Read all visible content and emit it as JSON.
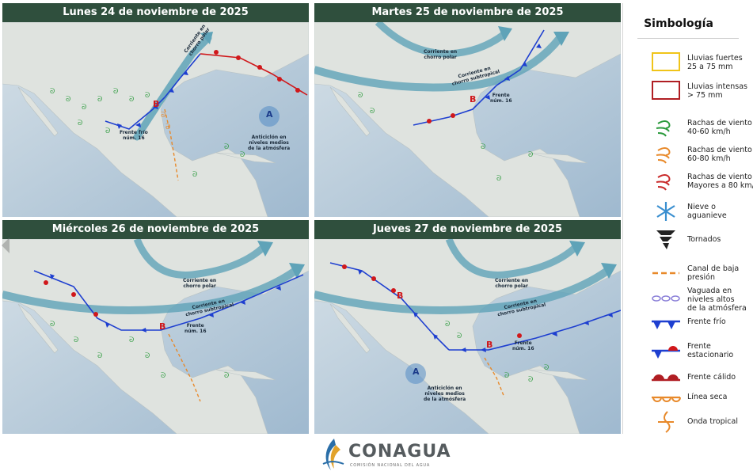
{
  "panels": [
    {
      "title": "Lunes 24 de noviembre de 2025",
      "labels": {
        "frente": "Frente frío\nnúm. 16",
        "antic": "Anticiclón en\nniveles medios\nde la atmósfera",
        "polar": "Corriente en\nchorro polar",
        "b": "B",
        "a": "A"
      }
    },
    {
      "title": "Martes 25 de noviembre de 2025",
      "labels": {
        "polar": "Corriente en\nchorro polar",
        "sub": "Corriente en\nchorro subtropical",
        "frente": "Frente\nnúm. 16",
        "b": "B"
      }
    },
    {
      "title": "Miércoles 26 de noviembre de 2025",
      "labels": {
        "polar": "Corriente en\nchorro polar",
        "sub": "Corriente en\nchorro subtropical",
        "frente": "Frente\nnúm. 16",
        "b": "B"
      }
    },
    {
      "title": "Jueves 27 de noviembre de 2025",
      "labels": {
        "polar": "Corriente en\nchorro polar",
        "sub": "Corriente en\nchorro subtropical",
        "frente": "Frente\nnúm. 16",
        "antic": "Anticiclón en\nniveles medios\nde la atmósfera",
        "b1": "B",
        "b2": "B",
        "a": "A"
      }
    }
  ],
  "legend": {
    "title": "Simbología",
    "items": [
      {
        "icon": "yellow-rectangle-icon",
        "label": "Lluvias fuertes\n25 a 75 mm"
      },
      {
        "icon": "red-rectangle-icon",
        "label": "Lluvias intensas\n> 75 mm"
      },
      {
        "icon": "green-wind-gust-icon",
        "label": "Rachas de viento\n40-60 km/h"
      },
      {
        "icon": "orange-wind-gust-icon",
        "label": "Rachas de viento\n60-80 km/h"
      },
      {
        "icon": "red-wind-gust-icon",
        "label": "Rachas de viento\nMayores a 80 km/h"
      },
      {
        "icon": "snowflake-icon",
        "label": "Nieve o\naguanieve"
      },
      {
        "icon": "tornado-icon",
        "label": "Tornados"
      },
      {
        "icon": "dashed-orange-line-icon",
        "label": "Canal de baja\npresión"
      },
      {
        "icon": "purple-dashed-ovals-icon",
        "label": "Vaguada en\nniveles altos\nde la atmósfera"
      },
      {
        "icon": "cold-front-icon",
        "label": "Frente frío"
      },
      {
        "icon": "stationary-front-icon",
        "label": "Frente\nestacionario"
      },
      {
        "icon": "warm-front-icon",
        "label": "Frente cálido"
      },
      {
        "icon": "dry-line-icon",
        "label": "Línea seca"
      },
      {
        "icon": "tropical-wave-icon",
        "label": "Onda tropical"
      }
    ]
  },
  "footer": {
    "brand": "CONAGUA",
    "subtitle": "COMISIÓN NACIONAL DEL AGUA"
  },
  "colors": {
    "header": "#2f4f3d",
    "ocean": "#c9d6df",
    "land": "#dfe3df",
    "front_blue": "#1e3fd0",
    "front_red": "#d0181b",
    "jet": "#5fa3b8",
    "trough": "#e8892a"
  }
}
